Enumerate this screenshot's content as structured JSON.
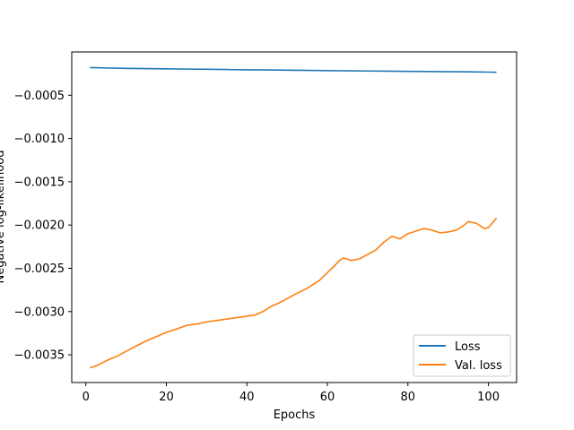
{
  "chart_data": {
    "type": "line",
    "title": "",
    "xlabel": "Epochs",
    "ylabel": "Negative log-likelihood",
    "xlim": [
      -3.5,
      107
    ],
    "ylim": [
      -0.00382,
      -0.0
    ],
    "x_ticks": [
      0,
      20,
      40,
      60,
      80,
      100
    ],
    "x_tick_labels": [
      "0",
      "20",
      "40",
      "60",
      "80",
      "100"
    ],
    "y_ticks": [
      -0.0035,
      -0.003,
      -0.0025,
      -0.002,
      -0.0015,
      -0.001,
      -0.0005
    ],
    "y_tick_labels": [
      "−0.0035",
      "−0.0030",
      "−0.0025",
      "−0.0020",
      "−0.0015",
      "−0.0010",
      "−0.0005"
    ],
    "grid": false,
    "legend_position": "lower-right",
    "series": [
      {
        "name": "Loss",
        "color": "#1f77b4",
        "x": [
          1,
          5,
          10,
          15,
          20,
          25,
          30,
          35,
          40,
          45,
          50,
          55,
          60,
          65,
          70,
          75,
          80,
          85,
          90,
          95,
          100,
          102
        ],
        "y": [
          -0.00018,
          -0.000185,
          -0.00019,
          -0.000192,
          -0.000195,
          -0.000198,
          -0.0002,
          -0.000203,
          -0.000206,
          -0.000208,
          -0.00021,
          -0.000213,
          -0.000215,
          -0.000218,
          -0.00022,
          -0.000222,
          -0.000224,
          -0.000226,
          -0.000228,
          -0.00023,
          -0.000233,
          -0.000235
        ]
      },
      {
        "name": "Val. loss",
        "color": "#ff7f0e",
        "x": [
          1,
          3,
          5,
          8,
          10,
          12,
          15,
          18,
          20,
          22,
          25,
          28,
          30,
          33,
          36,
          39,
          42,
          44,
          46,
          48,
          50,
          52,
          55,
          58,
          60,
          62,
          63,
          64,
          66,
          68,
          70,
          72,
          74,
          76,
          78,
          80,
          82,
          84,
          86,
          88,
          90,
          92,
          94,
          95,
          97,
          99,
          100,
          102
        ],
        "y": [
          -0.00365,
          -0.00362,
          -0.00357,
          -0.00351,
          -0.00346,
          -0.00341,
          -0.00334,
          -0.00328,
          -0.00324,
          -0.00321,
          -0.00316,
          -0.00314,
          -0.00312,
          -0.0031,
          -0.00308,
          -0.00306,
          -0.00304,
          -0.003,
          -0.00294,
          -0.0029,
          -0.00285,
          -0.0028,
          -0.00273,
          -0.00264,
          -0.00255,
          -0.00246,
          -0.00241,
          -0.00238,
          -0.00241,
          -0.00239,
          -0.00234,
          -0.00229,
          -0.0022,
          -0.00213,
          -0.00216,
          -0.0021,
          -0.00207,
          -0.00204,
          -0.00206,
          -0.00209,
          -0.00208,
          -0.00206,
          -0.002,
          -0.00196,
          -0.00198,
          -0.00204,
          -0.00203,
          -0.00192
        ]
      }
    ]
  }
}
